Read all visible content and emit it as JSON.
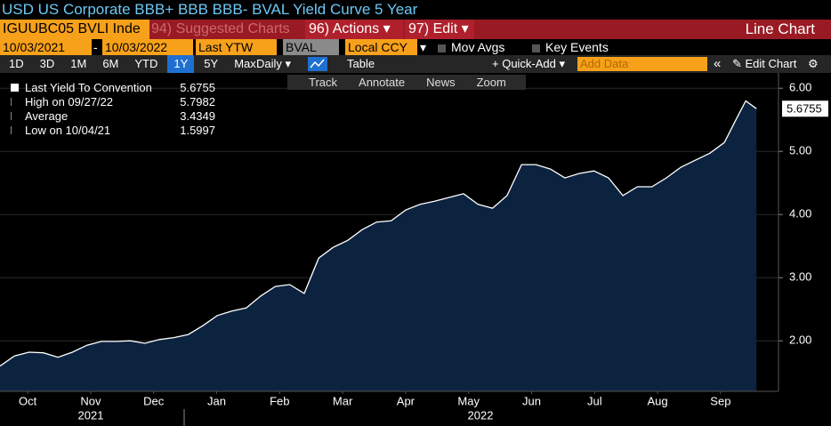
{
  "title": "USD US Corporate BBB+ BBB BBB- BVAL Yield Curve 5 Year",
  "bar1": {
    "ticker": "IGUUBC05 BVLI Inde",
    "suggested": "94) Suggested Charts",
    "actions": "96) Actions ▾",
    "edit": "97) Edit ▾",
    "view": "Line Chart"
  },
  "bar2": {
    "start": "10/03/2021",
    "dash": "-",
    "end": "10/03/2022",
    "field": "Last YTW",
    "source": "BVAL",
    "currency": "Local CCY",
    "arrow": "▾",
    "mov_avgs": "Mov Avgs",
    "key_events": "Key Events"
  },
  "toolbar": {
    "ranges": [
      "1D",
      "3D",
      "1M",
      "6M",
      "YTD",
      "1Y",
      "5Y",
      "Max"
    ],
    "active_range": 5,
    "frequency": "Daily ▾",
    "table": "Table",
    "quick_add": "+ Quick-Add ▾",
    "add_data": "Add Data",
    "collapse": "«",
    "edit_chart": "✎ Edit Chart",
    "settings": "⚙"
  },
  "chart_tools": [
    "Track",
    "Annotate",
    "News",
    "Zoom"
  ],
  "years": [
    "2021",
    "2022"
  ],
  "chart_data": {
    "type": "area",
    "x": [
      0.06,
      0.29,
      0.52,
      0.75,
      0.98,
      1.21,
      1.44,
      1.67,
      1.9,
      2.13,
      2.36,
      2.59,
      2.82,
      3.05,
      3.28,
      3.51,
      3.74,
      3.97,
      4.2,
      4.43,
      4.66,
      4.89,
      5.12,
      5.35,
      5.58,
      5.81,
      6.04,
      6.27,
      6.5,
      6.73,
      6.96,
      7.19,
      7.42,
      7.65,
      7.88,
      8.11,
      8.34,
      8.57,
      8.8,
      9.03,
      9.26,
      9.49,
      9.72,
      9.95,
      10.18,
      10.41,
      10.64,
      10.87,
      11.1,
      11.33,
      11.56,
      11.79,
      11.9,
      12.07
    ],
    "series": [
      {
        "name": "Last Yield To Convention",
        "color": "#0c2340",
        "line_color": "#ffffff",
        "values": [
          1.6,
          1.76,
          1.82,
          1.81,
          1.74,
          1.82,
          1.93,
          1.99,
          1.99,
          2.0,
          1.96,
          2.02,
          2.05,
          2.1,
          2.24,
          2.4,
          2.47,
          2.52,
          2.71,
          2.86,
          2.89,
          2.75,
          3.31,
          3.48,
          3.59,
          3.76,
          3.88,
          3.9,
          4.07,
          4.16,
          4.21,
          4.27,
          4.33,
          4.16,
          4.1,
          4.3,
          4.79,
          4.79,
          4.72,
          4.58,
          4.65,
          4.69,
          4.58,
          4.3,
          4.44,
          4.44,
          4.58,
          4.75,
          4.86,
          4.97,
          5.14,
          5.59,
          5.7982,
          5.6755
        ]
      }
    ],
    "legend": [
      {
        "label": "Last Yield To Convention",
        "value": "5.6755"
      },
      {
        "label": "High on 09/27/22",
        "value": "5.7982"
      },
      {
        "label": "Average",
        "value": "3.4349"
      },
      {
        "label": "Low on 10/04/21",
        "value": "1.5997"
      }
    ],
    "xlim": [
      0.06,
      12.42
    ],
    "xticks": [
      {
        "value": 0.5,
        "label": "Oct"
      },
      {
        "value": 1.5,
        "label": "Nov"
      },
      {
        "value": 2.5,
        "label": "Dec"
      },
      {
        "value": 3.5,
        "label": "Jan"
      },
      {
        "value": 4.5,
        "label": "Feb"
      },
      {
        "value": 5.5,
        "label": "Mar"
      },
      {
        "value": 6.5,
        "label": "Apr"
      },
      {
        "value": 7.5,
        "label": "May"
      },
      {
        "value": 8.5,
        "label": "Jun"
      },
      {
        "value": 9.5,
        "label": "Jul"
      },
      {
        "value": 10.5,
        "label": "Aug"
      },
      {
        "value": 11.5,
        "label": "Sep"
      }
    ],
    "ylim": [
      1.2,
      6.2
    ],
    "yticks": [
      {
        "value": 2,
        "label": "2.00"
      },
      {
        "value": 3,
        "label": "3.00"
      },
      {
        "value": 4,
        "label": "4.00"
      },
      {
        "value": 5,
        "label": "5.00"
      },
      {
        "value": 6,
        "label": "6.00"
      }
    ],
    "grid": true
  }
}
